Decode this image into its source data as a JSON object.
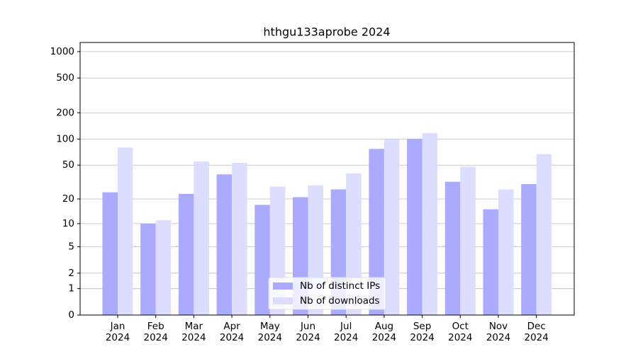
{
  "chart_data": {
    "type": "bar",
    "title": "hthgu133aprobe 2024",
    "categories": [
      "Jan\n2024",
      "Feb\n2024",
      "Mar\n2024",
      "Apr\n2024",
      "May\n2024",
      "Jun\n2024",
      "Jul\n2024",
      "Aug\n2024",
      "Sep\n2024",
      "Oct\n2024",
      "Nov\n2024",
      "Dec\n2024"
    ],
    "series": [
      {
        "name": "Nb of distinct IPs",
        "color": "#aaaaff",
        "values": [
          24,
          10,
          23,
          39,
          17,
          21,
          26,
          77,
          100,
          32,
          15,
          30
        ]
      },
      {
        "name": "Nb of downloads",
        "color": "#ddddff",
        "values": [
          80,
          11,
          55,
          53,
          28,
          29,
          40,
          100,
          117,
          48,
          26,
          67
        ]
      }
    ],
    "yscale": "symlog",
    "ylim": [
      0,
      1270
    ],
    "yticks": [
      0,
      1,
      2,
      5,
      10,
      20,
      50,
      100,
      200,
      500,
      1000
    ],
    "grid": true,
    "legend": "lower center"
  }
}
